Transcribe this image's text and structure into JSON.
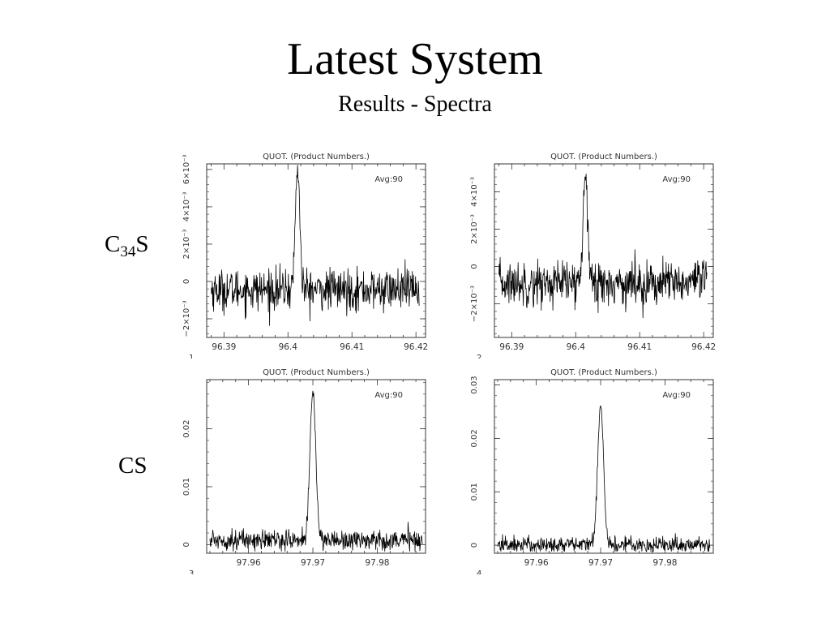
{
  "slide": {
    "title": "Latest System",
    "subtitle": "Results - Spectra"
  },
  "rows": [
    {
      "label_main": "C",
      "label_sub": "34",
      "label_tail": "S"
    },
    {
      "label_main": "CS",
      "label_sub": "",
      "label_tail": ""
    }
  ],
  "chart_data": [
    {
      "type": "line",
      "panel_number": "1",
      "title": "QUOT.   (Product Numbers.)",
      "annotation": "Avg:90",
      "xlabel": "",
      "ylabel": "",
      "x_ticks": [
        "96.39",
        "96.4",
        "96.41",
        "96.42"
      ],
      "x_tick_values": [
        96.39,
        96.4,
        96.41,
        96.42
      ],
      "y_ticks": [
        "−2×10⁻³",
        "0",
        "2×10⁻³",
        "4×10⁻³",
        "6×10⁻³"
      ],
      "y_tick_values": [
        -0.002,
        0,
        0.002,
        0.004,
        0.006
      ],
      "xlim": [
        96.3873,
        96.4215
      ],
      "ylim": [
        -0.003,
        0.0063
      ],
      "grid": false,
      "spectrum": {
        "x_start": 96.388,
        "x_end": 96.4205,
        "baseline": -0.00045,
        "noise": 0.00055,
        "peak_center": 96.4015,
        "peak_height": 0.0065,
        "peak_width": 0.00035
      }
    },
    {
      "type": "line",
      "panel_number": "2",
      "title": "QUOT.   (Product Numbers.)",
      "annotation": "Avg:90",
      "xlabel": "",
      "ylabel": "",
      "x_ticks": [
        "96.39",
        "96.4",
        "96.41",
        "96.42"
      ],
      "x_tick_values": [
        96.39,
        96.4,
        96.41,
        96.42
      ],
      "y_ticks": [
        "−2×10⁻³",
        "0",
        "2×10⁻³",
        "4×10⁻³"
      ],
      "y_tick_values": [
        -0.002,
        0,
        0.002,
        0.004
      ],
      "xlim": [
        96.3873,
        96.4215
      ],
      "ylim": [
        -0.0038,
        0.0055
      ],
      "grid": false,
      "spectrum": {
        "x_start": 96.388,
        "x_end": 96.4205,
        "baseline": -0.0009,
        "noise": 0.0006,
        "peak_center": 96.4015,
        "peak_height": 0.0062,
        "peak_width": 0.00035
      }
    },
    {
      "type": "line",
      "panel_number": "3",
      "title": "QUOT.   (Product Numbers.)",
      "annotation": "Avg:90",
      "xlabel": "",
      "ylabel": "",
      "x_ticks": [
        "97.96",
        "97.97",
        "97.98"
      ],
      "x_tick_values": [
        97.96,
        97.97,
        97.98
      ],
      "y_ticks": [
        "0",
        "0.01",
        "0.02"
      ],
      "y_tick_values": [
        0,
        0.01,
        0.02
      ],
      "xlim": [
        97.9535,
        97.9875
      ],
      "ylim": [
        -0.0015,
        0.0285
      ],
      "grid": false,
      "spectrum": {
        "x_start": 97.954,
        "x_end": 97.987,
        "baseline": 0.0008,
        "noise": 0.0009,
        "peak_center": 97.97,
        "peak_height": 0.0255,
        "peak_width": 0.00045
      }
    },
    {
      "type": "line",
      "panel_number": "4",
      "title": "QUOT.   (Product Numbers.)",
      "annotation": "Avg:90",
      "xlabel": "",
      "ylabel": "",
      "x_ticks": [
        "97.96",
        "97.97",
        "97.98"
      ],
      "x_tick_values": [
        97.96,
        97.97,
        97.98
      ],
      "y_ticks": [
        "0",
        "0.01",
        "0.02",
        "0.03"
      ],
      "y_tick_values": [
        0,
        0.01,
        0.02,
        0.03
      ],
      "xlim": [
        97.9535,
        97.9875
      ],
      "ylim": [
        -0.0015,
        0.031
      ],
      "grid": false,
      "spectrum": {
        "x_start": 97.954,
        "x_end": 97.987,
        "baseline": 0.0001,
        "noise": 0.0008,
        "peak_center": 97.97,
        "peak_height": 0.0265,
        "peak_width": 0.00045
      }
    }
  ]
}
